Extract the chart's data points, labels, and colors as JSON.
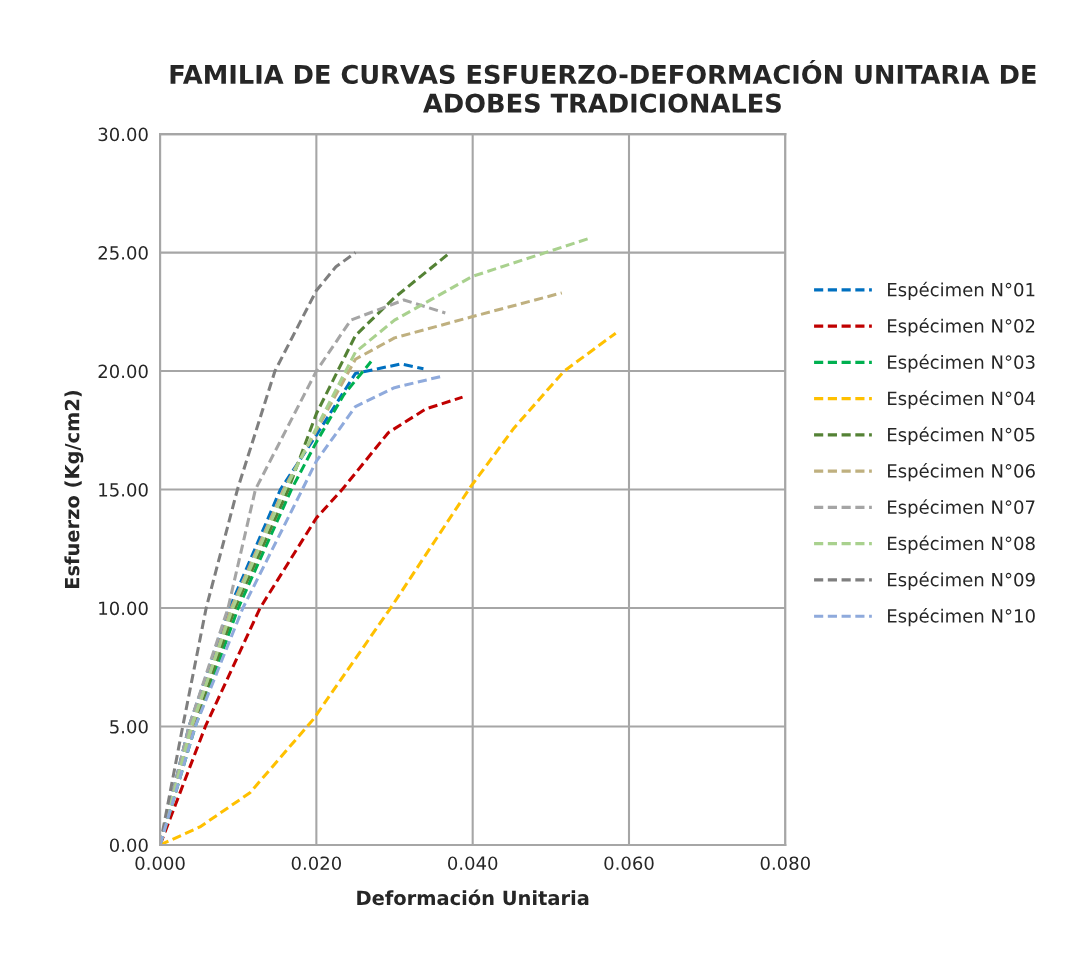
{
  "chart_data": {
    "type": "line",
    "title": "FAMILIA DE CURVAS ESFUERZO-DEFORMACIÓN UNITARIA DE ADOBES TRADICIONALES",
    "xlabel": "Deformación Unitaria",
    "ylabel": "Esfuerzo (Kg/cm2)",
    "xlim": [
      0,
      0.08
    ],
    "ylim": [
      0,
      30
    ],
    "xticks": [
      {
        "value": 0,
        "label": "0.000"
      },
      {
        "value": 0.02,
        "label": "0.020"
      },
      {
        "value": 0.04,
        "label": "0.040"
      },
      {
        "value": 0.06,
        "label": "0.060"
      },
      {
        "value": 0.08,
        "label": "0.080"
      }
    ],
    "yticks": [
      {
        "value": 0,
        "label": "0.00"
      },
      {
        "value": 5,
        "label": "5.00"
      },
      {
        "value": 10,
        "label": "10.00"
      },
      {
        "value": 15,
        "label": "15.00"
      },
      {
        "value": 20,
        "label": "20.00"
      },
      {
        "value": 25,
        "label": "25.00"
      },
      {
        "value": 30,
        "label": "30.00"
      }
    ],
    "grid": true,
    "legend": "right",
    "line_style": "dashed",
    "marker": "none",
    "series": [
      {
        "name": "Espécimen N°01",
        "color": "#0070c0",
        "x": [
          0,
          0.0037,
          0.0089,
          0.0154,
          0.02,
          0.025,
          0.0308,
          0.0337
        ],
        "values": [
          0,
          5,
          10,
          15,
          17.3,
          19.9,
          20.3,
          20.1
        ]
      },
      {
        "name": "Espécimen N°02",
        "color": "#c00000",
        "x": [
          0,
          0.0058,
          0.0128,
          0.02,
          0.0233,
          0.0292,
          0.034,
          0.0387
        ],
        "values": [
          0,
          5,
          10,
          13.8,
          15,
          17.4,
          18.4,
          18.9
        ]
      },
      {
        "name": "Espécimen N°03",
        "color": "#00b050",
        "x": [
          0,
          0.0045,
          0.01,
          0.0168,
          0.02,
          0.0235,
          0.027
        ],
        "values": [
          0,
          5,
          10,
          15,
          17,
          19,
          20.4
        ]
      },
      {
        "name": "Espécimen N°04",
        "color": "#ffc000",
        "x": [
          0,
          0.0051,
          0.0115,
          0.0196,
          0.0295,
          0.0397,
          0.0453,
          0.0517,
          0.0583
        ],
        "values": [
          0,
          0.76,
          2.2,
          5.3,
          10,
          15.1,
          17.6,
          20,
          21.6
        ]
      },
      {
        "name": "Espécimen N°05",
        "color": "#548235",
        "x": [
          0,
          0.0043,
          0.0096,
          0.0164,
          0.02,
          0.025,
          0.03,
          0.0371
        ],
        "values": [
          0,
          5,
          10,
          15,
          18.2,
          21.5,
          23.1,
          25
        ]
      },
      {
        "name": "Espécimen N°06",
        "color": "#bfb07f",
        "x": [
          0,
          0.0041,
          0.0091,
          0.0158,
          0.02,
          0.025,
          0.03,
          0.04,
          0.0514
        ],
        "values": [
          0,
          5,
          10,
          15,
          17.5,
          20.5,
          21.4,
          22.3,
          23.3
        ]
      },
      {
        "name": "Espécimen N°07",
        "color": "#a5a5a5",
        "x": [
          0,
          0.0037,
          0.0087,
          0.0122,
          0.02,
          0.0244,
          0.0312,
          0.0365
        ],
        "values": [
          0,
          5,
          10,
          15,
          20,
          22.15,
          23,
          22.45
        ]
      },
      {
        "name": "Espécimen N°08",
        "color": "#a9d18e",
        "x": [
          0,
          0.004,
          0.0093,
          0.016,
          0.02,
          0.025,
          0.03,
          0.04,
          0.0549
        ],
        "values": [
          0,
          5,
          10,
          15,
          17.6,
          20.8,
          22.15,
          24,
          25.6
        ]
      },
      {
        "name": "Espécimen N°09",
        "color": "#7f7f7f",
        "x": [
          0,
          0.0029,
          0.0059,
          0.0099,
          0.0147,
          0.02,
          0.0225,
          0.025
        ],
        "values": [
          0,
          5,
          10,
          15,
          20,
          23.4,
          24.4,
          25
        ]
      },
      {
        "name": "Espécimen N°10",
        "color": "#8faadc",
        "x": [
          0,
          0.0045,
          0.0106,
          0.0182,
          0.02,
          0.025,
          0.03,
          0.0363
        ],
        "values": [
          0,
          5,
          10,
          15,
          16.2,
          18.5,
          19.3,
          19.8
        ]
      }
    ]
  }
}
